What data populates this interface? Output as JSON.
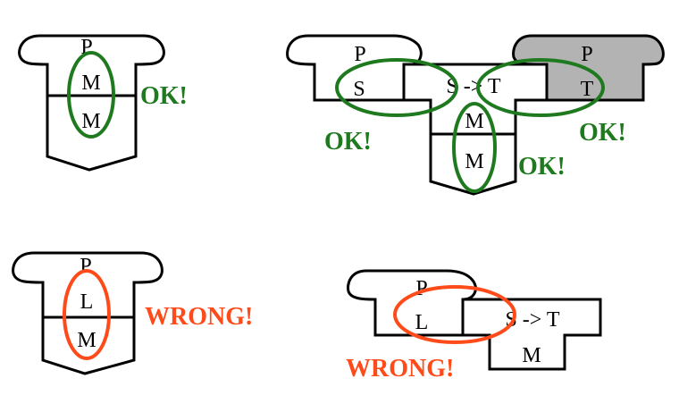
{
  "colors": {
    "ok": "#1f7a1f",
    "wrong": "#ff4a1a",
    "shaded": "#b3b3b3"
  },
  "diagram_ok_single": {
    "top_label": "P",
    "mid_label": "M",
    "bottom_label": "M",
    "verdict": "OK!"
  },
  "diagram_ok_composite": {
    "left_top_label": "P",
    "left_bottom_label": "S",
    "center_label": "S -> T",
    "right_top_label": "P",
    "right_bottom_label": "T",
    "lower_top_label": "M",
    "lower_bottom_label": "M",
    "verdict_left": "OK!",
    "verdict_right": "OK!",
    "verdict_lower": "OK!"
  },
  "diagram_wrong_single": {
    "top_label": "P",
    "mid_label": "L",
    "bottom_label": "M",
    "verdict": "WRONG!"
  },
  "diagram_wrong_composite": {
    "left_top_label": "P",
    "left_bottom_label": "L",
    "center_label": "S -> T",
    "lower_label": "M",
    "verdict": "WRONG!"
  }
}
